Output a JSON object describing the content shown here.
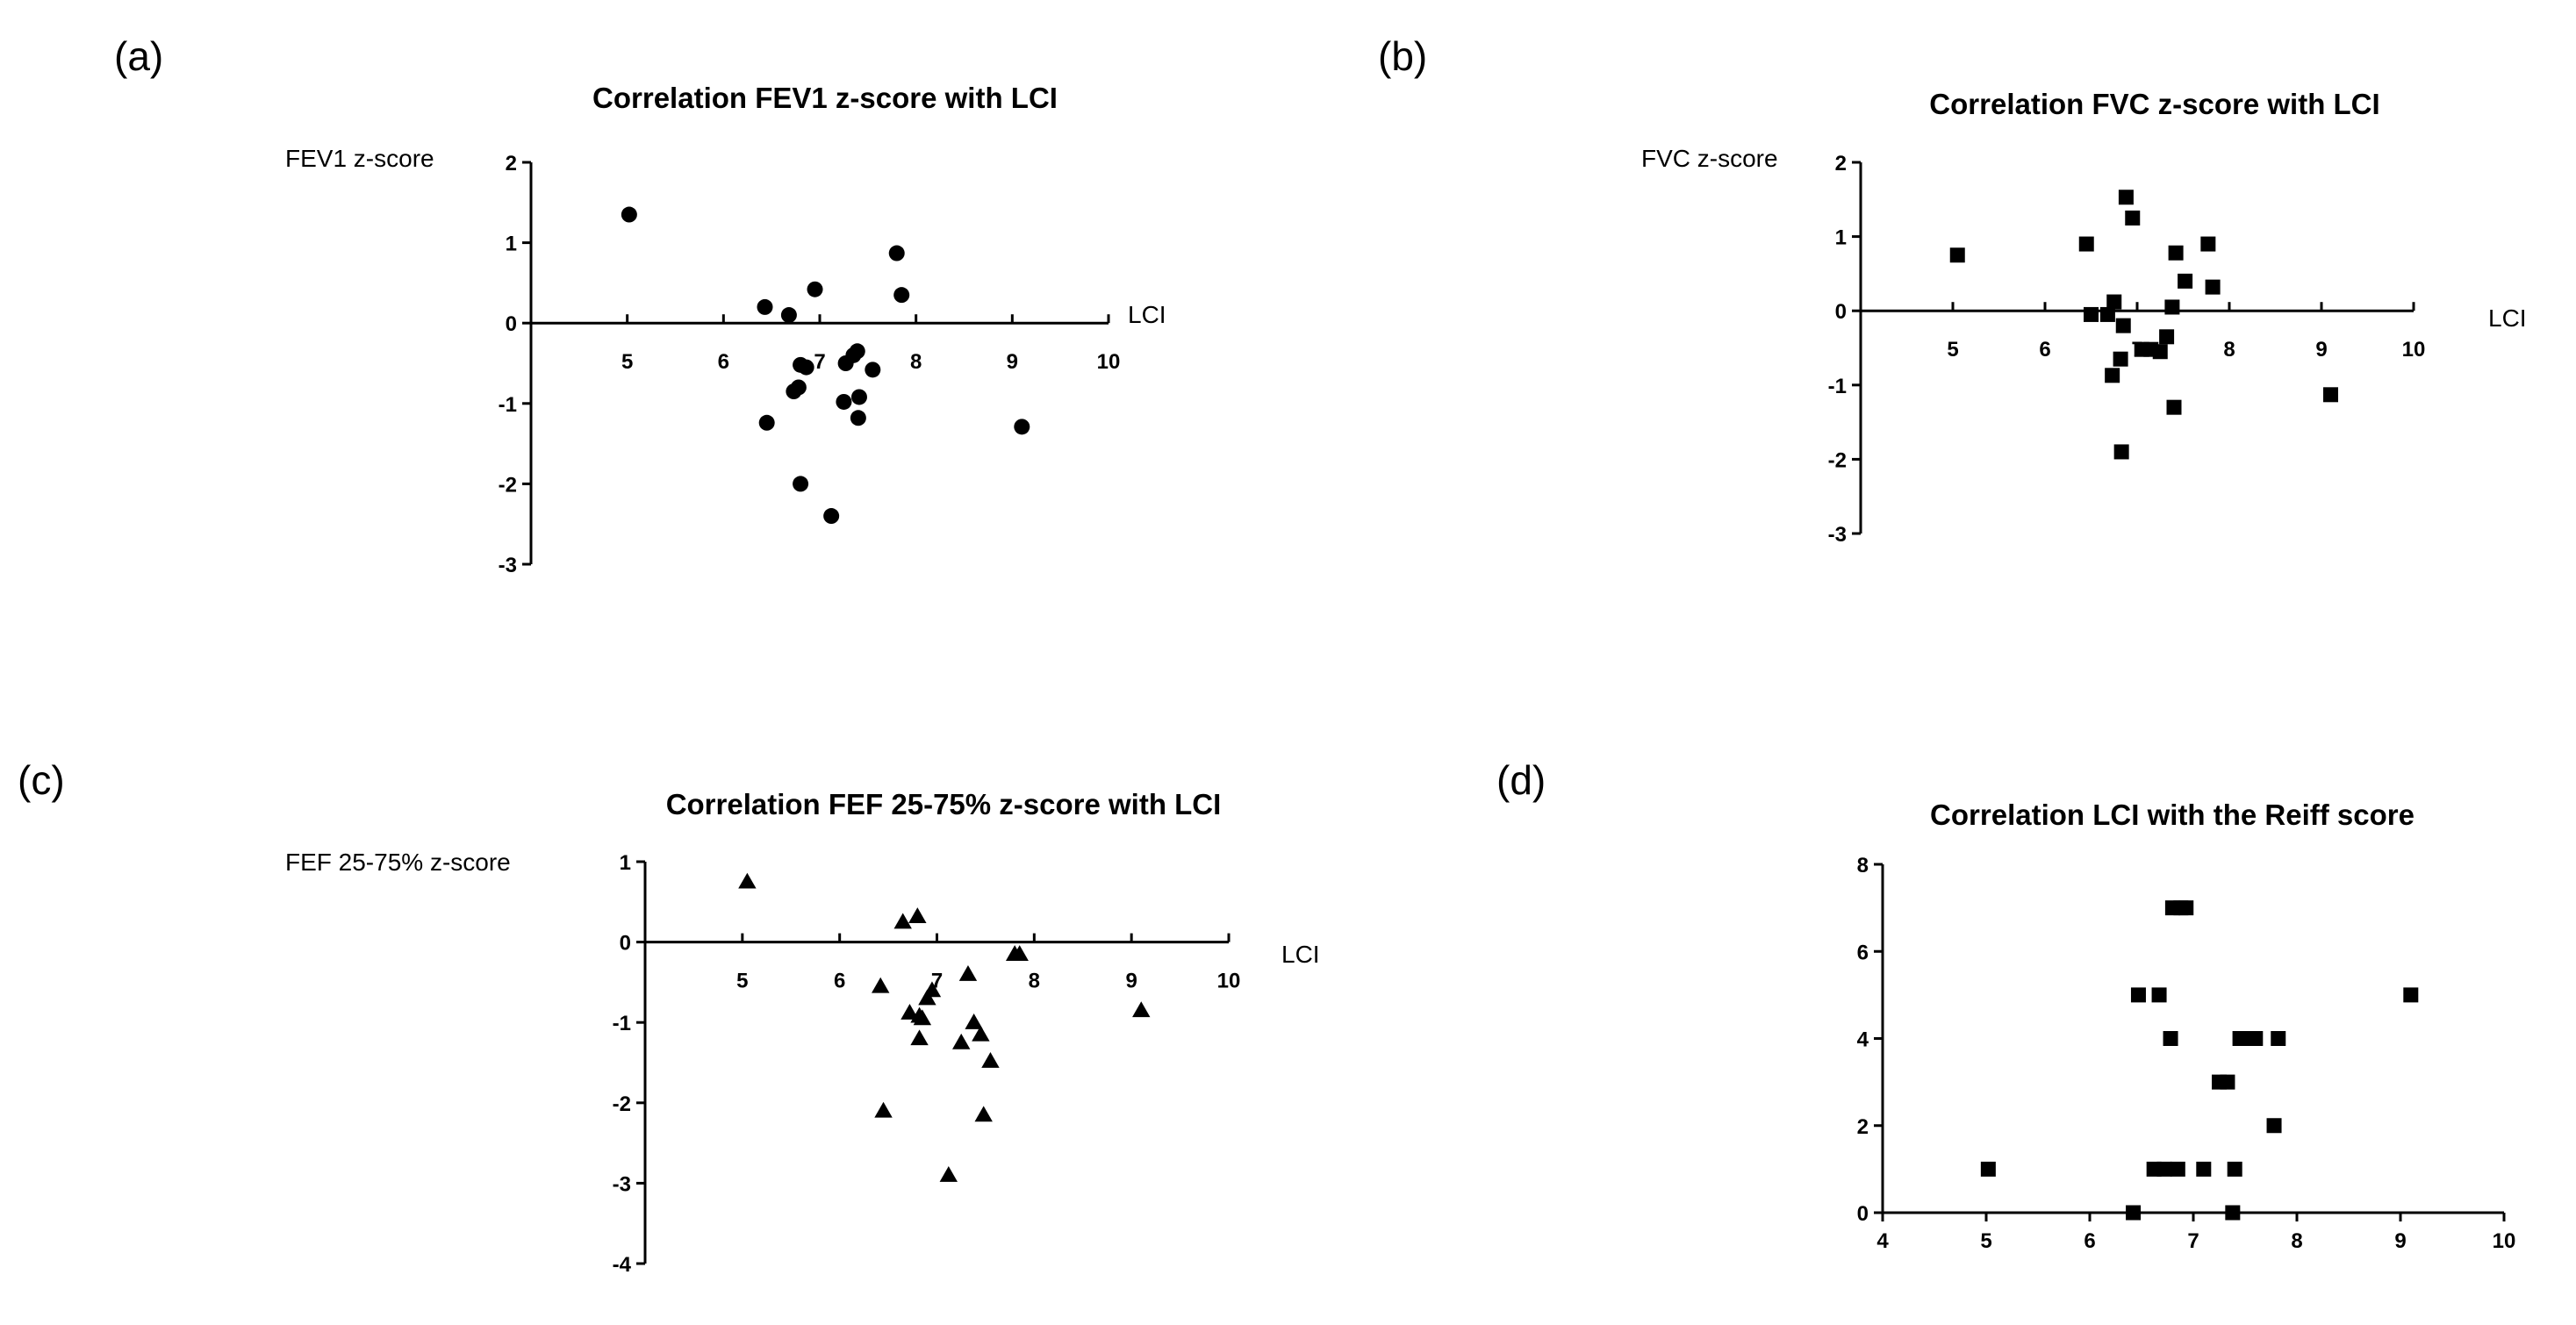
{
  "panel_labels": [
    "(a)",
    "(b)",
    "(c)",
    "(d)"
  ],
  "chart_data": [
    {
      "panel": "(a)",
      "type": "scatter",
      "title": "Correlation FEV1 z-score with LCI",
      "xlabel": "LCI",
      "ylabel": "FEV1 z-score",
      "xlim": [
        4,
        10
      ],
      "ylim": [
        -3,
        2
      ],
      "xticks": [
        5,
        6,
        7,
        8,
        9,
        10
      ],
      "yticks": [
        -3,
        -2,
        -1,
        0,
        1,
        2
      ],
      "marker": "circle",
      "x": [
        5.02,
        6.43,
        6.68,
        6.95,
        7.8,
        7.85,
        6.8,
        6.86,
        6.78,
        6.73,
        7.27,
        7.35,
        7.39,
        7.55,
        7.25,
        7.41,
        7.4,
        6.45,
        9.1,
        6.8,
        7.12
      ],
      "y": [
        1.35,
        0.2,
        0.1,
        0.42,
        0.87,
        0.35,
        -0.52,
        -0.55,
        -0.8,
        -0.85,
        -0.5,
        -0.4,
        -0.35,
        -0.58,
        -0.98,
        -0.92,
        -1.18,
        -1.24,
        -1.29,
        -2.0,
        -2.4
      ]
    },
    {
      "panel": "(b)",
      "type": "scatter",
      "title": "Correlation FVC z-score with LCI",
      "xlabel": "LCI",
      "ylabel": "FVC z-score",
      "xlim": [
        4,
        10
      ],
      "ylim": [
        -3,
        2
      ],
      "xticks": [
        5,
        6,
        7,
        8,
        9,
        10
      ],
      "yticks": [
        -3,
        -2,
        -1,
        0,
        1,
        2
      ],
      "marker": "square",
      "x": [
        5.05,
        6.45,
        6.75,
        6.88,
        6.95,
        6.5,
        6.68,
        6.85,
        7.42,
        7.52,
        7.77,
        7.82,
        7.38,
        7.32,
        7.05,
        7.15,
        7.25,
        6.82,
        6.73,
        7.4,
        9.1,
        6.83
      ],
      "y": [
        0.75,
        0.9,
        0.12,
        1.53,
        1.25,
        -0.05,
        -0.05,
        -0.2,
        0.78,
        0.4,
        0.9,
        0.32,
        0.05,
        -0.35,
        -0.52,
        -0.52,
        -0.55,
        -0.65,
        -0.87,
        -1.3,
        -1.13,
        -1.9
      ]
    },
    {
      "panel": "(c)",
      "type": "scatter",
      "title": "Correlation FEF 25-75% z-score with LCI",
      "xlabel": "LCI",
      "ylabel": "FEF 25-75% z-score",
      "xlim": [
        4,
        10
      ],
      "ylim": [
        -4,
        1
      ],
      "xticks": [
        5,
        6,
        7,
        8,
        9,
        10
      ],
      "yticks": [
        -4,
        -3,
        -2,
        -1,
        0,
        1
      ],
      "marker": "triangle",
      "x": [
        5.05,
        6.65,
        6.8,
        7.85,
        7.8,
        7.32,
        6.95,
        6.9,
        6.42,
        6.72,
        6.82,
        6.85,
        7.38,
        7.45,
        7.25,
        7.55,
        9.1,
        6.82,
        6.45,
        7.48,
        7.12
      ],
      "y": [
        0.75,
        0.25,
        0.32,
        -0.15,
        -0.15,
        -0.4,
        -0.6,
        -0.7,
        -0.55,
        -0.88,
        -0.92,
        -0.95,
        -1.0,
        -1.15,
        -1.25,
        -1.48,
        -0.85,
        -1.2,
        -2.1,
        -2.15,
        -2.9
      ]
    },
    {
      "panel": "(d)",
      "type": "scatter",
      "title": "Correlation LCI with the Reiff score",
      "xlabel": "",
      "ylabel": "",
      "xlim": [
        4,
        10
      ],
      "ylim": [
        0,
        8
      ],
      "xticks": [
        4,
        5,
        6,
        7,
        8,
        9,
        10
      ],
      "yticks": [
        0,
        2,
        4,
        6,
        8
      ],
      "marker": "square",
      "x": [
        5.02,
        6.42,
        6.47,
        6.62,
        6.67,
        6.72,
        6.78,
        6.85,
        6.93,
        6.8,
        6.88,
        7.1,
        7.25,
        7.33,
        7.38,
        7.4,
        7.45,
        7.5,
        7.6,
        7.78,
        7.82,
        9.1
      ],
      "y": [
        1,
        0,
        5,
        1,
        5,
        1,
        4,
        1,
        7,
        7,
        7,
        1,
        3,
        3,
        0,
        1,
        4,
        4,
        4,
        2,
        4,
        5
      ]
    }
  ]
}
